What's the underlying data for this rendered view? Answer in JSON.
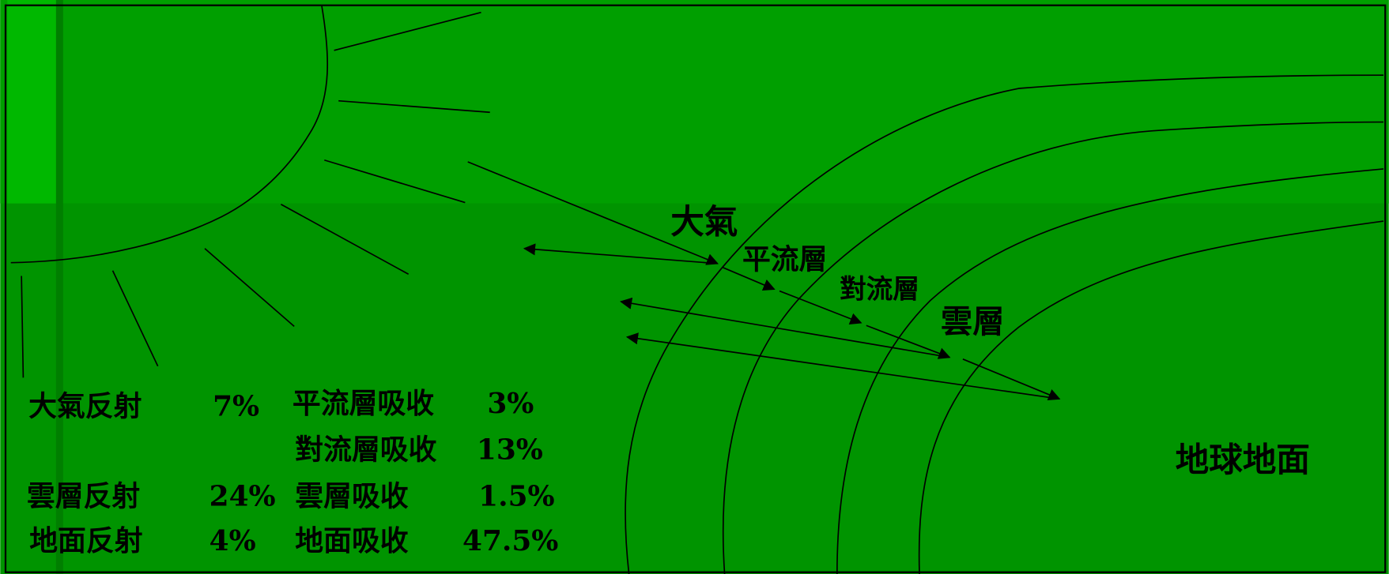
{
  "labels": {
    "atmosphere": "大氣",
    "stratosphere": "平流層",
    "troposphere": "對流層",
    "clouds": "雲層",
    "ground": "地球地面"
  },
  "reflection": [
    {
      "label": "大氣反射",
      "value": "7%"
    },
    {
      "label": "雲層反射",
      "value": "24%"
    },
    {
      "label": "地面反射",
      "value": "4%"
    }
  ],
  "absorption": [
    {
      "label": "平流層吸收",
      "value": "3%"
    },
    {
      "label": "對流層吸收",
      "value": "13%"
    },
    {
      "label": "雲層吸收",
      "value": "1.5%"
    },
    {
      "label": "地面吸收",
      "value": "47.5%"
    }
  ]
}
